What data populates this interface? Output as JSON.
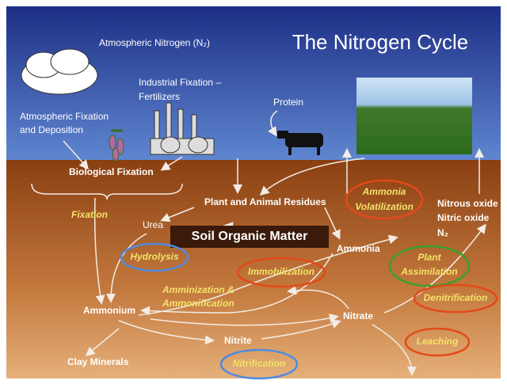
{
  "title": "The Nitrogen Cycle",
  "atmosphere": {
    "nitrogen": "Atmospheric Nitrogen (N₂)",
    "industrial": [
      "Industrial Fixation –",
      "Fertilizers"
    ],
    "protein": "Protein",
    "deposition": [
      "Atmospheric Fixation",
      "and Deposition"
    ]
  },
  "soil": {
    "biological_fixation": "Biological Fixation",
    "urea": "Urea",
    "residues": "Plant and Animal Residues",
    "gases": [
      "Nitrous oxide",
      "Nitric oxide",
      "N₂"
    ],
    "organic_matter": "Soil Organic Matter",
    "ammonia": "Ammonia",
    "ammonium": "Ammonium",
    "nitrate": "Nitrate",
    "nitrite": "Nitrite",
    "clay": "Clay Minerals"
  },
  "processes": {
    "fixation": "Fixation",
    "volatilization": [
      "Ammonia",
      "Volatilization"
    ],
    "hydrolysis": "Hydrolysis",
    "immobilization": "Immobilization",
    "assimilation": [
      "Plant",
      "Assimilation"
    ],
    "ammonification": [
      "Amminization &",
      "Ammonification"
    ],
    "denitrification": "Denitrification",
    "leaching": "Leaching",
    "nitrification": "Nitrification"
  }
}
